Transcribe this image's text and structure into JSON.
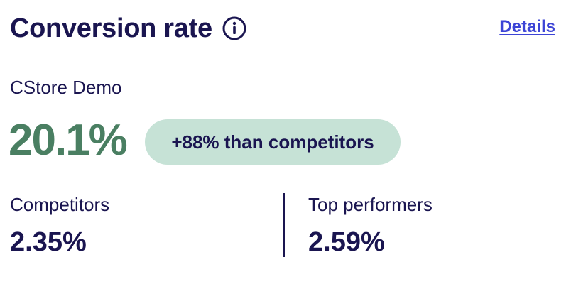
{
  "header": {
    "title": "Conversion rate",
    "info_icon": "info-circle-icon",
    "details_label": "Details"
  },
  "store": {
    "name": "CStore Demo",
    "conversion_rate": "20.1%",
    "comparison_badge": "+88% than competitors"
  },
  "benchmarks": [
    {
      "label": "Competitors",
      "value": "2.35%"
    },
    {
      "label": "Top performers",
      "value": "2.59%"
    }
  ],
  "colors": {
    "text": "#1a1550",
    "accent_value": "#4a7f62",
    "badge_bg": "#c6e2d6",
    "link": "#3c44d6"
  }
}
